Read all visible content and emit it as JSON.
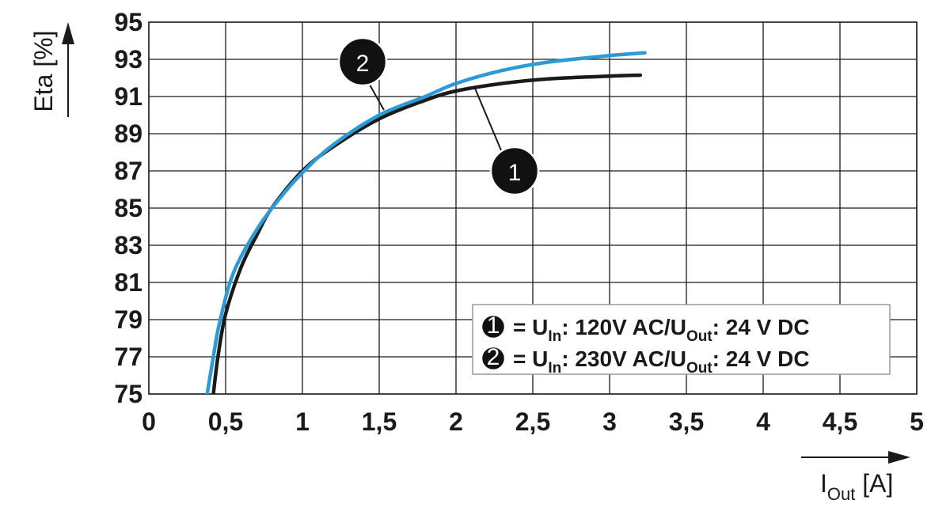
{
  "chart_data": {
    "type": "line",
    "xlabel": {
      "main": "I",
      "sub": "Out",
      "unit": " [A]"
    },
    "ylabel": "Eta [%]",
    "xlim": [
      0,
      5
    ],
    "ylim": [
      75,
      95
    ],
    "x_ticks": [
      0,
      0.5,
      1,
      1.5,
      2,
      2.5,
      3,
      3.5,
      4,
      4.5,
      5
    ],
    "x_tick_labels": [
      "0",
      "0,5",
      "1",
      "1,5",
      "2",
      "2,5",
      "3",
      "3,5",
      "4",
      "4,5",
      "5"
    ],
    "y_ticks": [
      75,
      77,
      79,
      81,
      83,
      85,
      87,
      89,
      91,
      93,
      95
    ],
    "y_tick_labels": [
      "75",
      "77",
      "79",
      "81",
      "83",
      "85",
      "87",
      "89",
      "91",
      "93",
      "95"
    ],
    "grid": true,
    "legend_position": "bottom-right",
    "series": [
      {
        "marker": "1",
        "color": "#1a1a1a",
        "legend": {
          "prefix": "= U",
          "in_sub": "In",
          "mid": ": 120V AC/U",
          "out_sub": "Out",
          "suffix": ": 24 V DC"
        },
        "points": [
          [
            0.42,
            75.0
          ],
          [
            0.45,
            77.0
          ],
          [
            0.5,
            79.3
          ],
          [
            0.6,
            81.8
          ],
          [
            0.7,
            83.5
          ],
          [
            0.8,
            85.0
          ],
          [
            1.0,
            87.0
          ],
          [
            1.2,
            88.3
          ],
          [
            1.5,
            89.8
          ],
          [
            1.8,
            90.8
          ],
          [
            2.0,
            91.3
          ],
          [
            2.3,
            91.7
          ],
          [
            2.6,
            91.95
          ],
          [
            3.0,
            92.1
          ],
          [
            3.2,
            92.15
          ]
        ]
      },
      {
        "marker": "2",
        "color": "#2c9ad6",
        "legend": {
          "prefix": "= U",
          "in_sub": "In",
          "mid": ": 230V AC/U",
          "out_sub": "Out",
          "suffix": ": 24 V DC"
        },
        "points": [
          [
            0.38,
            75.0
          ],
          [
            0.42,
            77.0
          ],
          [
            0.46,
            78.8
          ],
          [
            0.55,
            81.5
          ],
          [
            0.7,
            83.8
          ],
          [
            0.85,
            85.5
          ],
          [
            1.0,
            86.9
          ],
          [
            1.2,
            88.4
          ],
          [
            1.5,
            90.0
          ],
          [
            1.8,
            91.0
          ],
          [
            2.0,
            91.7
          ],
          [
            2.3,
            92.4
          ],
          [
            2.6,
            92.85
          ],
          [
            3.0,
            93.2
          ],
          [
            3.23,
            93.35
          ]
        ]
      }
    ]
  }
}
